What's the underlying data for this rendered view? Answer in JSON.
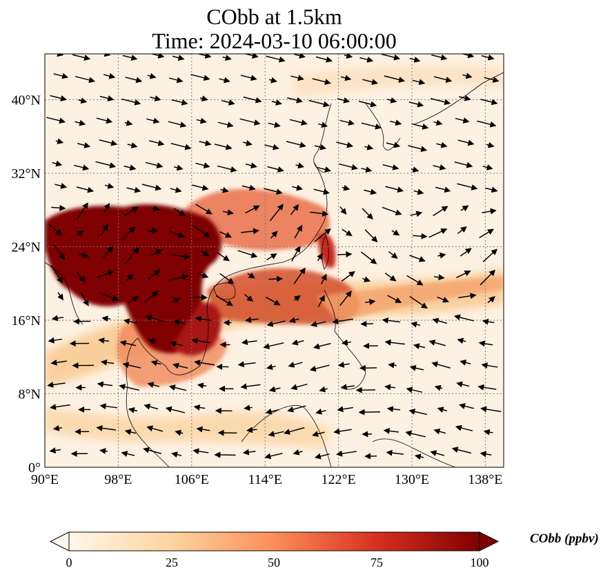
{
  "figure": {
    "title_line1": "CObb at 1.5km",
    "title_line2": "Time: 2024-03-10 06:00:00"
  },
  "map": {
    "lon_range": [
      90,
      140
    ],
    "lat_range": [
      0,
      45
    ],
    "lon_ticks": [
      "90°E",
      "98°E",
      "106°E",
      "114°E",
      "122°E",
      "130°E",
      "138°E"
    ],
    "lat_ticks": [
      "0°",
      "8°N",
      "16°N",
      "24°N",
      "32°N",
      "40°N"
    ],
    "gridlines": true,
    "field": "CObb",
    "wind_vectors": true,
    "coastlines": true
  },
  "colorbar": {
    "label": "CObb (ppbv)",
    "ticks": [
      "0",
      "25",
      "50",
      "75",
      "100"
    ],
    "range": [
      0,
      100
    ],
    "extend": "both",
    "colormap": "OrRd",
    "colors": [
      "#fff7ec",
      "#fdd49e",
      "#fc8d59",
      "#d7301f",
      "#7f0000"
    ]
  }
}
